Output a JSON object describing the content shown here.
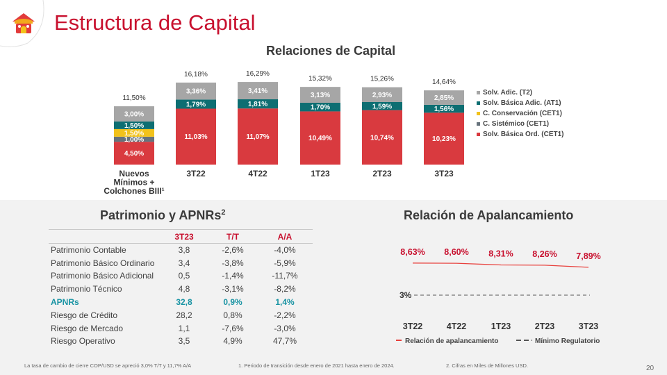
{
  "page": {
    "title": "Estructura de Capital",
    "page_number": "20",
    "footnotes": [
      "La tasa de cambio de cierre COP/USD se apreció 3,0% T/T y 11,7% A/A",
      "1. Periodo de transición desde enero de 2021 hasta enero de 2024.",
      "2. Cifras en Miles de Millones USD."
    ]
  },
  "colors": {
    "brand_red": "#c8102e",
    "cet1_ord": "#d93a3f",
    "csist": "#66727c",
    "ccons": "#f2c21b",
    "at1": "#0d6e72",
    "t2": "#a6a6a6",
    "apnr": "#1793a3",
    "line_red": "#e8403c",
    "dash": "#555555"
  },
  "chart_data": [
    {
      "type": "bar",
      "title": "Relaciones de Capital",
      "categories": [
        [
          "Nuevos",
          "Mínimos +",
          "Colchones BIII¹"
        ],
        [
          "3T22"
        ],
        [
          "4T22"
        ],
        [
          "1T23"
        ],
        [
          "2T23"
        ],
        [
          "3T23"
        ]
      ],
      "totals": [
        "11,50%",
        "16,18%",
        "16,29%",
        "15,32%",
        "15,26%",
        "14,64%"
      ],
      "series": [
        {
          "name": "Solv. Básica Ord. (CET1)",
          "color_key": "cet1_ord",
          "values": [
            4.5,
            11.03,
            11.07,
            10.49,
            10.74,
            10.23
          ],
          "labels": [
            "4,50%",
            "11,03%",
            "11,07%",
            "10,49%",
            "10,74%",
            "10,23%"
          ]
        },
        {
          "name": "C. Sistémico (CET1)",
          "color_key": "csist",
          "values": [
            1.0,
            0,
            0,
            0,
            0,
            0
          ],
          "labels": [
            "1,00%",
            "",
            "",
            "",
            "",
            ""
          ]
        },
        {
          "name": "C. Conservación (CET1)",
          "color_key": "ccons",
          "values": [
            1.5,
            0,
            0,
            0,
            0,
            0
          ],
          "labels": [
            "1,50%",
            "",
            "",
            "",
            "",
            ""
          ]
        },
        {
          "name": "Solv. Básica Adic. (AT1)",
          "color_key": "at1",
          "values": [
            1.5,
            1.79,
            1.81,
            1.7,
            1.59,
            1.56
          ],
          "labels": [
            "1,50%",
            "1,79%",
            "1,81%",
            "1,70%",
            "1,59%",
            "1,56%"
          ]
        },
        {
          "name": "Solv. Adic. (T2)",
          "color_key": "t2",
          "values": [
            3.0,
            3.36,
            3.41,
            3.13,
            2.93,
            2.85
          ],
          "labels": [
            "3,00%",
            "3,36%",
            "3,41%",
            "3,13%",
            "2,93%",
            "2,85%"
          ]
        }
      ],
      "legend_order": [
        "Solv. Adic. (T2)",
        "Solv. Básica Adic. (AT1)",
        "C. Conservación (CET1)",
        "C. Sistémico (CET1)",
        "Solv. Básica Ord. (CET1)"
      ],
      "legend": "right"
    },
    {
      "type": "line",
      "title": "Relación de Apalancamiento",
      "x": [
        "3T22",
        "4T22",
        "1T23",
        "2T23",
        "3T23"
      ],
      "series": [
        {
          "name": "Relación de apalancamiento",
          "values": [
            8.63,
            8.6,
            8.31,
            8.26,
            7.89
          ],
          "labels": [
            "8,63%",
            "8,60%",
            "8,31%",
            "8,26%",
            "7,89%"
          ]
        },
        {
          "name": "Mínimo Regulatorio",
          "values": [
            3,
            3,
            3,
            3,
            3
          ],
          "label": "3%"
        }
      ],
      "legend": "bottom"
    },
    {
      "type": "table",
      "title": "Patrimonio y APNRs",
      "title_sup": "2",
      "columns": [
        "",
        "3T23",
        "T/T",
        "A/A"
      ],
      "rows": [
        {
          "label": "Patrimonio Contable",
          "v": "3,8",
          "tt": "-2,6%",
          "aa": "-4,0%"
        },
        {
          "label": "Patrimonio Básico Ordinario",
          "v": "3,4",
          "tt": "-3,8%",
          "aa": "-5,9%"
        },
        {
          "label": "Patrimonio Básico Adicional",
          "v": "0,5",
          "tt": "-1,4%",
          "aa": "-11,7%"
        },
        {
          "label": "Patrimonio Técnico",
          "v": "4,8",
          "tt": "-3,1%",
          "aa": "-8,2%"
        },
        {
          "label": "APNRs",
          "v": "32,8",
          "tt": "0,9%",
          "aa": "1,4%",
          "highlight": true
        },
        {
          "label": "Riesgo de Crédito",
          "v": "28,2",
          "tt": "0,8%",
          "aa": "-2,2%"
        },
        {
          "label": "Riesgo de Mercado",
          "v": "1,1",
          "tt": "-7,6%",
          "aa": "-3,0%"
        },
        {
          "label": "Riesgo Operativo",
          "v": "3,5",
          "tt": "4,9%",
          "aa": "47,7%"
        }
      ]
    }
  ]
}
